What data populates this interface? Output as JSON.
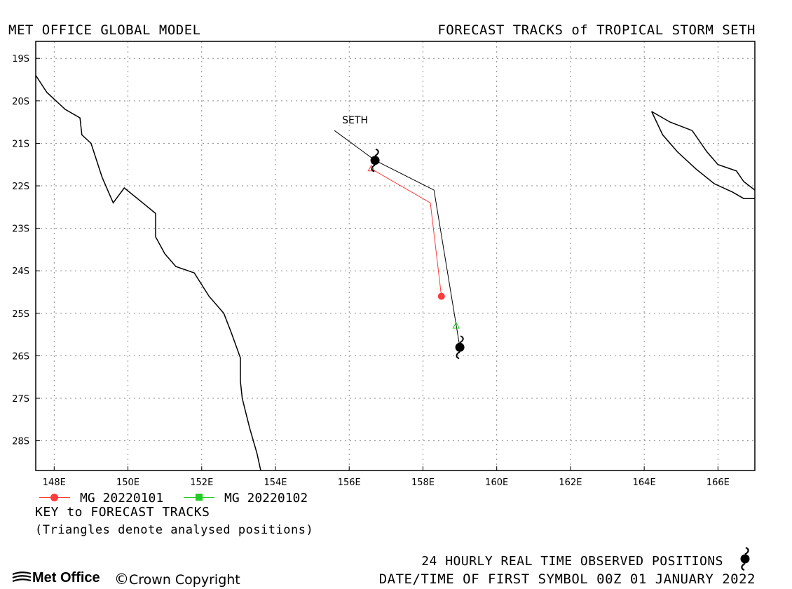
{
  "header": {
    "left": "MET OFFICE GLOBAL MODEL",
    "right": "FORECAST TRACKS of TROPICAL STORM SETH"
  },
  "chart_data": {
    "type": "map-track",
    "title": "FORECAST TRACKS of TROPICAL STORM SETH",
    "storm_label": "SETH",
    "xlim": [
      147.5,
      167.0
    ],
    "ylim": [
      -28.7,
      -18.6
    ],
    "x_ticks": [
      148,
      150,
      152,
      154,
      156,
      158,
      160,
      162,
      164,
      166
    ],
    "x_tick_labels": [
      "148E",
      "150E",
      "152E",
      "154E",
      "156E",
      "158E",
      "160E",
      "162E",
      "164E",
      "166E"
    ],
    "y_ticks": [
      -19,
      -20,
      -21,
      -22,
      -23,
      -24,
      -25,
      -26,
      -27,
      -28
    ],
    "y_tick_labels": [
      "19S",
      "20S",
      "21S",
      "22S",
      "23S",
      "24S",
      "25S",
      "26S",
      "27S",
      "28S"
    ],
    "grid": true,
    "observed_track": {
      "name": "24 HOURLY REAL TIME OBSERVED POSITIONS",
      "color": "#000000",
      "points": [
        [
          155.6,
          -20.7
        ],
        [
          156.7,
          -21.4
        ],
        [
          158.3,
          -22.1
        ],
        [
          159.0,
          -25.8
        ]
      ],
      "symbols": [
        [
          156.7,
          -21.4
        ],
        [
          159.0,
          -25.8
        ]
      ]
    },
    "series": [
      {
        "name": "MG 20220101",
        "color": "#ff3b3b",
        "marker": "circle",
        "points": [
          [
            156.6,
            -21.6
          ],
          [
            158.2,
            -22.4
          ],
          [
            158.5,
            -24.6
          ]
        ],
        "analysed": [
          [
            156.6,
            -21.6
          ]
        ]
      },
      {
        "name": "MG 20220102",
        "color": "#22cc22",
        "marker": "square",
        "points": [
          [
            158.9,
            -25.3
          ]
        ],
        "analysed": [
          [
            158.9,
            -25.3
          ]
        ]
      }
    ],
    "coastlines": [
      [
        [
          147.5,
          -19.4
        ],
        [
          147.8,
          -19.8
        ],
        [
          148.3,
          -20.2
        ],
        [
          148.7,
          -20.4
        ],
        [
          148.75,
          -20.8
        ],
        [
          149.0,
          -21.0
        ],
        [
          149.3,
          -21.8
        ],
        [
          149.6,
          -22.4
        ],
        [
          149.9,
          -22.05
        ],
        [
          150.4,
          -22.4
        ],
        [
          150.75,
          -22.65
        ],
        [
          150.75,
          -23.2
        ],
        [
          151.0,
          -23.6
        ],
        [
          151.3,
          -23.9
        ],
        [
          151.8,
          -24.05
        ],
        [
          152.2,
          -24.6
        ],
        [
          152.6,
          -25.0
        ],
        [
          152.8,
          -25.45
        ],
        [
          153.05,
          -26.05
        ],
        [
          153.05,
          -26.6
        ],
        [
          153.1,
          -27.0
        ],
        [
          153.3,
          -27.7
        ],
        [
          153.5,
          -28.3
        ],
        [
          153.6,
          -28.7
        ]
      ],
      [
        [
          164.2,
          -20.25
        ],
        [
          164.7,
          -20.5
        ],
        [
          165.3,
          -20.7
        ],
        [
          165.7,
          -21.2
        ],
        [
          166.0,
          -21.5
        ],
        [
          166.5,
          -21.65
        ],
        [
          166.7,
          -21.9
        ],
        [
          167.0,
          -22.1
        ]
      ],
      [
        [
          164.2,
          -20.25
        ],
        [
          164.5,
          -20.8
        ],
        [
          164.9,
          -21.2
        ],
        [
          165.4,
          -21.6
        ],
        [
          165.9,
          -21.95
        ],
        [
          166.4,
          -22.15
        ],
        [
          166.7,
          -22.3
        ],
        [
          167.0,
          -22.3
        ]
      ]
    ]
  },
  "legend": {
    "items": [
      {
        "label": "MG 20220101",
        "color": "#ff3b3b",
        "marker": "circle"
      },
      {
        "label": "MG 20220102",
        "color": "#22cc22",
        "marker": "square"
      }
    ],
    "title": "KEY to FORECAST TRACKS",
    "note": "(Triangles denote analysed positions)"
  },
  "footer": {
    "observed_label": "24 HOURLY REAL TIME OBSERVED POSITIONS",
    "date_label": "DATE/TIME OF FIRST SYMBOL 00Z 01 JANUARY 2022",
    "logo_text": "Met Office",
    "copyright": "Crown Copyright"
  }
}
